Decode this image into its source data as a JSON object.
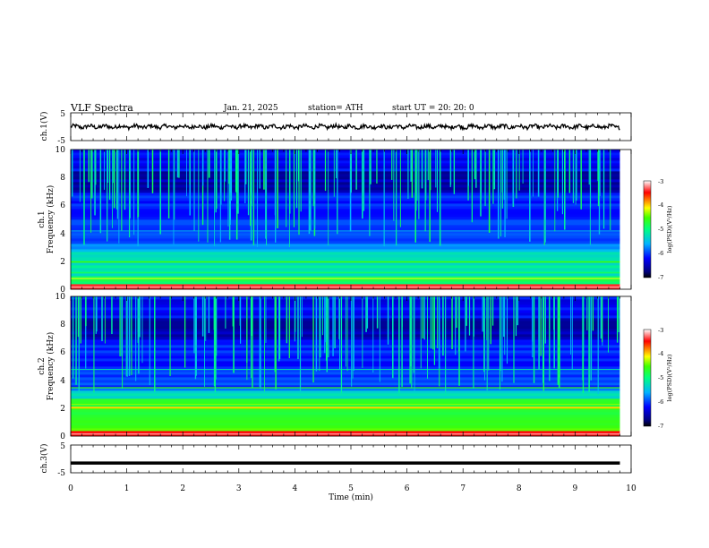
{
  "header": {
    "title": "VLF  Spectra",
    "date": "Jan. 21, 2025",
    "station": "station= ATH",
    "start": "start  UT  =   20: 20: 0"
  },
  "chart_data": [
    {
      "type": "line",
      "panel": "ch1-waveform",
      "ylabel": "ch.1(V)",
      "xlim": [
        0,
        10
      ],
      "ylim": [
        -5,
        5
      ],
      "yticks": [
        "5",
        "-5"
      ],
      "description_values": {
        "mean": 0,
        "amplitude": 1.0
      }
    },
    {
      "type": "heatmap",
      "panel": "ch1-spectrogram",
      "ylabel": [
        "ch.1",
        "Frequency  (kHz)"
      ],
      "xlim": [
        0,
        10
      ],
      "ylim": [
        0,
        10
      ],
      "yticks": [
        "0",
        "2",
        "4",
        "6",
        "8",
        "10"
      ],
      "colorbar": {
        "label": "log(PSD)(V²/Hz)",
        "range": [
          -7,
          -3
        ],
        "ticks": [
          "-3",
          "-4",
          "-5",
          "-6",
          "-7"
        ]
      },
      "data_end_min": 9.8
    },
    {
      "type": "heatmap",
      "panel": "ch2-spectrogram",
      "ylabel": [
        "ch.2",
        "Frequency  (kHz)"
      ],
      "xlim": [
        0,
        10
      ],
      "ylim": [
        0,
        10
      ],
      "yticks": [
        "0",
        "2",
        "4",
        "6",
        "8",
        "10"
      ],
      "colorbar": {
        "label": "log(PSD)(V²/Hz)",
        "range": [
          -7,
          -3
        ],
        "ticks": [
          "-3",
          "-4",
          "-5",
          "-6",
          "-7"
        ]
      },
      "data_end_min": 9.8
    },
    {
      "type": "line",
      "panel": "ch3-waveform",
      "ylabel": "ch.3(V)",
      "xlim": [
        0,
        10
      ],
      "ylim": [
        -5,
        5
      ],
      "yticks": [
        "5",
        "-5"
      ],
      "level": -1.5
    }
  ],
  "x_axis": {
    "label": "Time  (min)",
    "ticks": [
      "0",
      "1",
      "2",
      "3",
      "4",
      "5",
      "6",
      "7",
      "8",
      "9",
      "10"
    ]
  }
}
